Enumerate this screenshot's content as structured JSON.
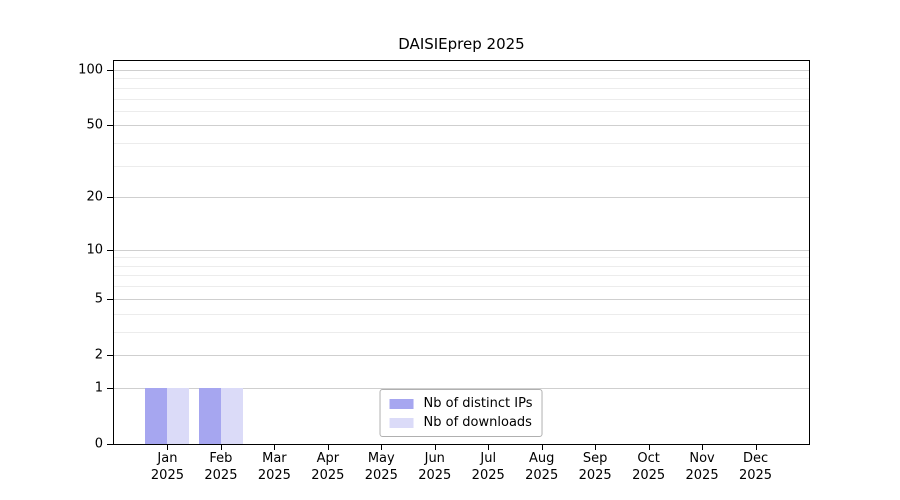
{
  "figure": {
    "title": "DAISIEprep 2025"
  },
  "chart_data": {
    "type": "bar",
    "title": "DAISIEprep 2025",
    "categories": [
      "Jan",
      "Feb",
      "Mar",
      "Apr",
      "May",
      "Jun",
      "Jul",
      "Aug",
      "Sep",
      "Oct",
      "Nov",
      "Dec"
    ],
    "category_year": "2025",
    "series": [
      {
        "name": "Nb of distinct IPs",
        "color": "#a6a6f0",
        "values": [
          1,
          1,
          0,
          0,
          0,
          0,
          0,
          0,
          0,
          0,
          0,
          0
        ]
      },
      {
        "name": "Nb of downloads",
        "color": "#dbdbf8",
        "values": [
          1,
          1,
          0,
          0,
          0,
          0,
          0,
          0,
          0,
          0,
          0,
          0
        ]
      }
    ],
    "y_axis": {
      "scale": "log1p",
      "tick_values": [
        0,
        1,
        2,
        5,
        10,
        20,
        50,
        100
      ],
      "minor_gridline_values": [
        3,
        4,
        6,
        7,
        8,
        9,
        30,
        40,
        60,
        70,
        80,
        90
      ],
      "range": [
        0,
        115
      ]
    },
    "x_axis": {
      "months_shown": 12
    },
    "legend": {
      "position": "lower center",
      "entries": [
        "Nb of distinct IPs",
        "Nb of downloads"
      ]
    },
    "grid": true,
    "colors": {
      "bar_distinct_ips": "#a6a6f0",
      "bar_downloads": "#dbdbf8",
      "major_grid": "#cfcfcf",
      "minor_grid": "#ececec",
      "spine": "#000000",
      "legend_border": "#b0b0b0"
    }
  }
}
